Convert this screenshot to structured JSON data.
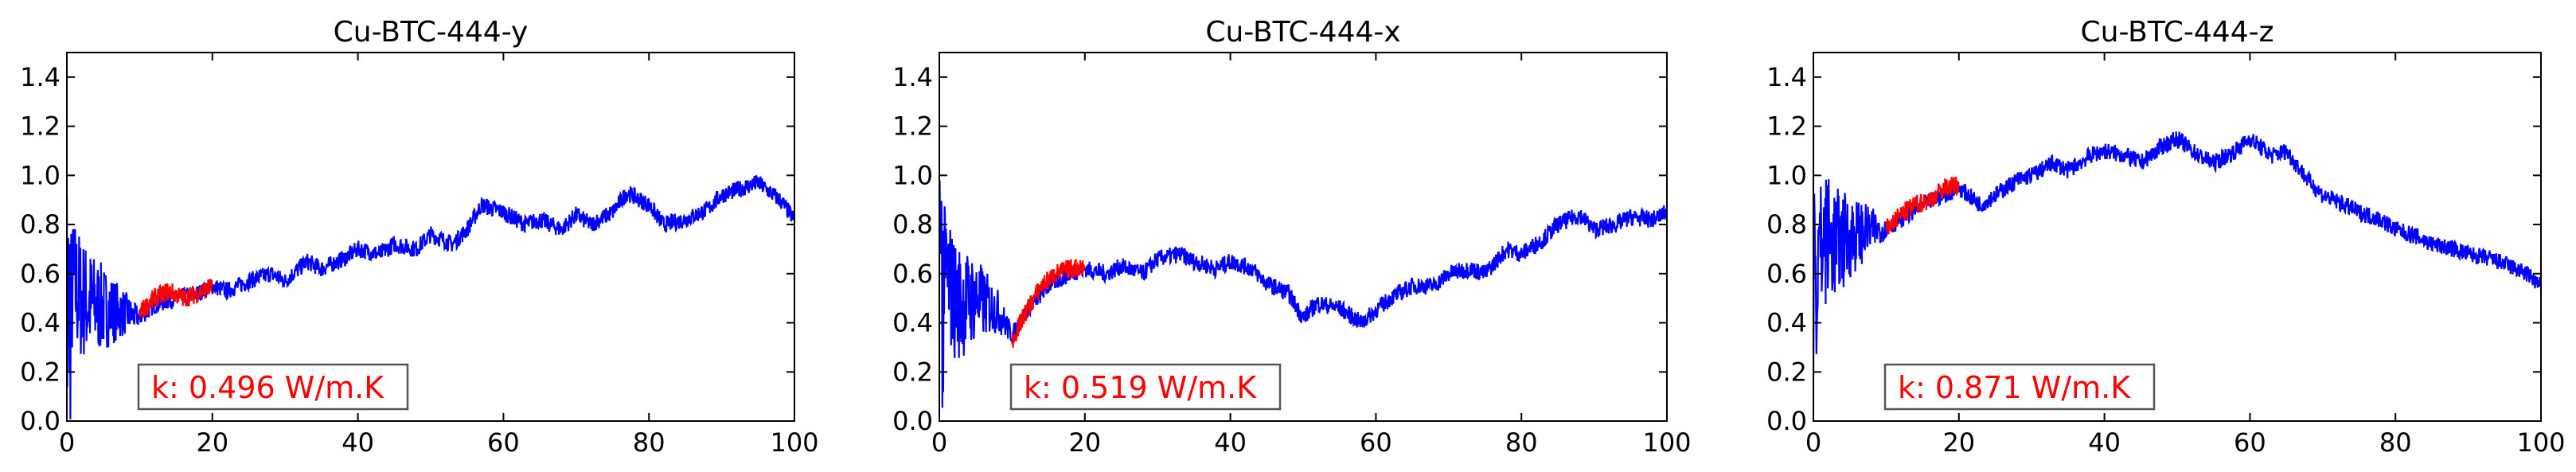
{
  "colors": {
    "series_main": "#0000ff",
    "series_highlight": "#ff0000",
    "axes": "#000000",
    "annotation_border": "#555555"
  },
  "chart_data": [
    {
      "type": "line",
      "title": "Cu-BTC-444-y",
      "xlabel": "",
      "ylabel": "",
      "xlim": [
        0,
        100
      ],
      "ylim": [
        0,
        1.5
      ],
      "xticks": [
        "0",
        "20",
        "40",
        "60",
        "80",
        "100"
      ],
      "yticks": [
        "0.0",
        "0.2",
        "0.4",
        "0.6",
        "0.8",
        "1.0",
        "1.2",
        "1.4"
      ],
      "grid": false,
      "annotation": "k: 0.496 W/m.K",
      "highlight_range": [
        10,
        20
      ],
      "series": [
        {
          "color": "#0000ff",
          "noise": 0.035,
          "x": [
            0,
            1,
            2,
            3,
            5,
            8,
            10,
            12,
            15,
            18,
            20,
            22,
            25,
            28,
            30,
            33,
            35,
            38,
            40,
            43,
            45,
            48,
            50,
            53,
            55,
            57,
            60,
            63,
            65,
            68,
            70,
            72,
            75,
            77,
            80,
            82,
            85,
            88,
            90,
            93,
            95,
            98,
            100
          ],
          "y": [
            0.45,
            0.55,
            0.5,
            0.48,
            0.46,
            0.44,
            0.42,
            0.47,
            0.5,
            0.52,
            0.55,
            0.53,
            0.57,
            0.6,
            0.57,
            0.65,
            0.62,
            0.66,
            0.7,
            0.68,
            0.72,
            0.7,
            0.76,
            0.72,
            0.78,
            0.88,
            0.85,
            0.8,
            0.82,
            0.78,
            0.84,
            0.8,
            0.85,
            0.93,
            0.88,
            0.8,
            0.82,
            0.86,
            0.92,
            0.95,
            0.97,
            0.9,
            0.82
          ]
        },
        {
          "color": "#ff0000",
          "noise": 0.04,
          "x": [
            10,
            12,
            14,
            16,
            18,
            20
          ],
          "y": [
            0.44,
            0.5,
            0.53,
            0.5,
            0.52,
            0.55
          ]
        }
      ]
    },
    {
      "type": "line",
      "title": "Cu-BTC-444-x",
      "xlabel": "",
      "ylabel": "",
      "xlim": [
        0,
        100
      ],
      "ylim": [
        0,
        1.5
      ],
      "xticks": [
        "0",
        "20",
        "40",
        "60",
        "80",
        "100"
      ],
      "yticks": [
        "0.0",
        "0.2",
        "0.4",
        "0.6",
        "0.8",
        "1.0",
        "1.2",
        "1.4"
      ],
      "grid": false,
      "annotation": "k: 0.519 W/m.K",
      "highlight_range": [
        10,
        20
      ],
      "series": [
        {
          "color": "#0000ff",
          "noise": 0.035,
          "x": [
            0,
            1,
            2,
            3,
            5,
            8,
            10,
            12,
            15,
            18,
            20,
            23,
            25,
            28,
            30,
            33,
            35,
            38,
            40,
            43,
            45,
            48,
            50,
            52,
            55,
            58,
            60,
            62,
            65,
            68,
            70,
            73,
            75,
            78,
            80,
            83,
            85,
            88,
            90,
            93,
            95,
            98,
            100
          ],
          "y": [
            0.55,
            0.6,
            0.5,
            0.48,
            0.5,
            0.45,
            0.35,
            0.45,
            0.55,
            0.6,
            0.62,
            0.6,
            0.63,
            0.6,
            0.66,
            0.68,
            0.65,
            0.62,
            0.65,
            0.62,
            0.56,
            0.52,
            0.42,
            0.48,
            0.46,
            0.4,
            0.45,
            0.5,
            0.55,
            0.55,
            0.6,
            0.62,
            0.6,
            0.7,
            0.68,
            0.74,
            0.8,
            0.84,
            0.78,
            0.8,
            0.83,
            0.82,
            0.85
          ]
        },
        {
          "color": "#ff0000",
          "noise": 0.04,
          "x": [
            10,
            12,
            14,
            16,
            18,
            20
          ],
          "y": [
            0.33,
            0.45,
            0.55,
            0.6,
            0.62,
            0.63
          ]
        }
      ]
    },
    {
      "type": "line",
      "title": "Cu-BTC-444-z",
      "xlabel": "",
      "ylabel": "",
      "xlim": [
        0,
        100
      ],
      "ylim": [
        0,
        1.5
      ],
      "xticks": [
        "0",
        "20",
        "40",
        "60",
        "80",
        "100"
      ],
      "yticks": [
        "0.0",
        "0.2",
        "0.4",
        "0.6",
        "0.8",
        "1.0",
        "1.2",
        "1.4"
      ],
      "grid": false,
      "annotation": "k: 0.871 W/m.K",
      "highlight_range": [
        10,
        20
      ],
      "series": [
        {
          "color": "#0000ff",
          "noise": 0.035,
          "x": [
            0,
            1,
            2,
            3,
            5,
            8,
            10,
            12,
            15,
            18,
            20,
            23,
            25,
            28,
            30,
            33,
            35,
            38,
            40,
            43,
            45,
            48,
            50,
            53,
            55,
            58,
            60,
            63,
            65,
            68,
            70,
            73,
            75,
            78,
            80,
            83,
            85,
            88,
            90,
            93,
            95,
            98,
            100
          ],
          "y": [
            0.65,
            0.7,
            0.75,
            0.72,
            0.75,
            0.78,
            0.78,
            0.82,
            0.88,
            0.92,
            0.95,
            0.88,
            0.92,
            0.98,
            1.0,
            1.05,
            1.02,
            1.08,
            1.1,
            1.08,
            1.05,
            1.12,
            1.15,
            1.08,
            1.05,
            1.1,
            1.15,
            1.08,
            1.1,
            0.98,
            0.92,
            0.88,
            0.85,
            0.82,
            0.78,
            0.75,
            0.72,
            0.7,
            0.68,
            0.66,
            0.64,
            0.6,
            0.55
          ]
        },
        {
          "color": "#ff0000",
          "noise": 0.04,
          "x": [
            10,
            12,
            14,
            16,
            18,
            20
          ],
          "y": [
            0.78,
            0.84,
            0.88,
            0.9,
            0.95,
            0.96
          ]
        }
      ]
    }
  ]
}
